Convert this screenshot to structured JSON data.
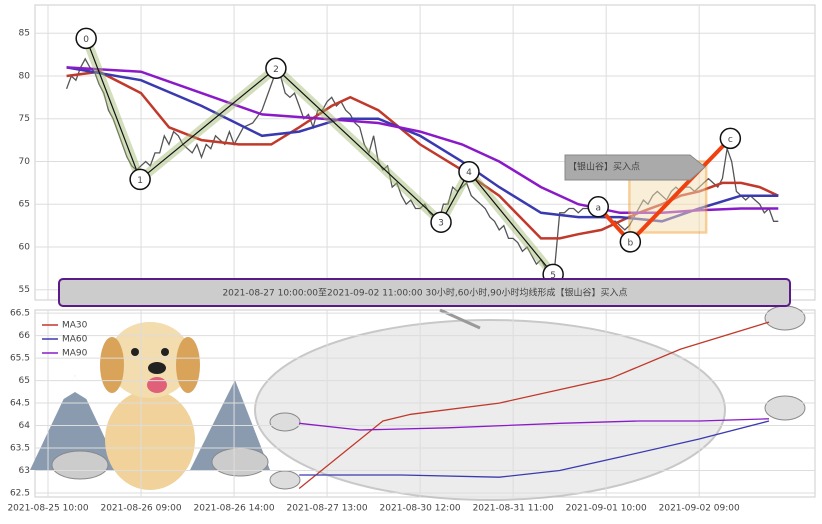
{
  "chart_data": [
    {
      "type": "line",
      "ylim": [
        53.8,
        88.3
      ],
      "xlim": [
        -2.8,
        164.9
      ],
      "yticks": [
        55,
        60,
        65,
        70,
        75,
        80,
        85
      ],
      "grid": true,
      "series": [
        {
          "color": "#555555",
          "x": [
            4,
            5,
            6,
            7,
            8,
            9,
            10,
            11,
            12,
            13,
            14,
            15,
            16,
            17,
            18,
            19,
            20,
            21,
            22,
            23,
            24,
            25,
            26,
            27,
            28,
            29,
            30,
            31,
            32,
            33,
            34,
            35,
            36,
            37,
            38,
            39,
            40,
            42,
            44,
            46,
            48,
            49,
            50,
            51,
            52,
            53,
            54,
            55,
            56,
            57,
            58,
            59,
            60,
            61,
            62,
            63,
            64,
            65,
            66,
            67,
            68,
            69,
            70,
            71,
            72,
            73,
            74,
            75,
            76,
            77,
            78,
            79,
            80,
            81,
            82,
            83,
            84,
            85,
            86,
            87,
            88,
            89,
            90,
            91,
            92,
            93,
            94,
            95,
            96,
            97,
            98,
            99,
            100,
            101,
            102,
            103,
            104,
            105,
            106,
            107,
            108,
            109,
            110,
            111,
            112,
            113,
            114,
            115,
            116,
            117,
            118,
            119,
            120,
            121,
            122,
            123,
            124,
            125,
            126,
            127,
            128,
            129,
            130,
            131,
            132,
            133,
            134,
            135,
            136,
            137,
            138,
            139,
            140,
            141,
            142,
            143,
            144,
            145,
            146,
            147,
            148,
            149,
            150,
            151,
            152,
            153,
            154,
            155,
            156,
            157
          ],
          "values": [
            78.5,
            80,
            79.5,
            81,
            82,
            81,
            80.5,
            79,
            78,
            76,
            75,
            73.5,
            72,
            70.5,
            69.5,
            69,
            69.5,
            70,
            69.5,
            71,
            71,
            73,
            72,
            73.5,
            73,
            72,
            71.5,
            71,
            72,
            70.5,
            72,
            71.5,
            73,
            72.5,
            72,
            73.5,
            72,
            74,
            74.5,
            76,
            79,
            80.5,
            80,
            78,
            77.5,
            78,
            76.5,
            75,
            75.5,
            74,
            76,
            76,
            77,
            77.5,
            76.5,
            77,
            76,
            75.5,
            74.5,
            74,
            72,
            71,
            73,
            70,
            69,
            69.5,
            67,
            67.5,
            66,
            65,
            65.5,
            64.5,
            64.5,
            65,
            64,
            63.5,
            63,
            65,
            65,
            67,
            66.5,
            67,
            67.5,
            66,
            65.5,
            65,
            64.5,
            63.5,
            63,
            62,
            62.5,
            61,
            61,
            60.5,
            59.5,
            60,
            59,
            58,
            58.5,
            57.5,
            57.5,
            58,
            64,
            64,
            64.5,
            64.5,
            64,
            64.5,
            64.5,
            64,
            64,
            64,
            63.5,
            63,
            63,
            62.5,
            62,
            62.5,
            63.5,
            64.5,
            65.5,
            65,
            66,
            66.5,
            66,
            65.5,
            66.5,
            67,
            66.5,
            67,
            67,
            66.5,
            67,
            67.5,
            68,
            67.5,
            67,
            68,
            71.5,
            70,
            66.5,
            66,
            65.5,
            66,
            65.5,
            65,
            64,
            64.5,
            63,
            63
          ]
        },
        {
          "color": "#c0392b",
          "x": [
            4,
            11,
            20,
            26,
            33,
            41,
            48,
            54,
            61,
            65,
            71,
            80,
            89,
            97,
            106,
            110,
            114,
            119,
            123,
            127,
            132,
            136,
            140,
            145,
            149,
            153,
            157
          ],
          "values": [
            80,
            80.5,
            78,
            74,
            72.5,
            72,
            72,
            74,
            76.5,
            77.5,
            76,
            72,
            69,
            66,
            61,
            61,
            61.5,
            62,
            63,
            64,
            65,
            66,
            66.5,
            67.5,
            67.5,
            67,
            66
          ]
        },
        {
          "color": "#3a3ab0",
          "x": [
            4,
            20,
            33,
            46,
            54,
            63,
            71,
            80,
            89,
            97,
            106,
            114,
            123,
            132,
            140,
            149,
            157
          ],
          "values": [
            81,
            79.5,
            76.5,
            73,
            73.5,
            75,
            75,
            73,
            70,
            67,
            64,
            63.5,
            63.5,
            63,
            64.5,
            66,
            66
          ]
        },
        {
          "color": "#8a1ac8",
          "x": [
            4,
            20,
            33,
            46,
            59,
            71,
            80,
            89,
            97,
            106,
            114,
            123,
            132,
            140,
            149,
            157
          ],
          "values": [
            81,
            80.5,
            78,
            75.5,
            75,
            74.5,
            73.5,
            72,
            70,
            67,
            65,
            64,
            64,
            64.3,
            64.5,
            64.5
          ]
        }
      ],
      "waves": [
        {
          "label": "0",
          "x": 8.2,
          "y": 84.4
        },
        {
          "label": "1",
          "x": 19.8,
          "y": 67.9
        },
        {
          "label": "2",
          "x": 49,
          "y": 80.9
        },
        {
          "label": "3",
          "x": 84.5,
          "y": 62.9
        },
        {
          "label": "4",
          "x": 90.5,
          "y": 68.8
        },
        {
          "label": "5",
          "x": 108.6,
          "y": 56.8
        }
      ],
      "abc": [
        {
          "label": "a",
          "x": 118.3,
          "y": 64.7
        },
        {
          "label": "b",
          "x": 125.2,
          "y": 60.6
        },
        {
          "label": "c",
          "x": 146.7,
          "y": 72.7
        }
      ],
      "buy_zone": {
        "x": [
          125,
          141.5
        ],
        "y": [
          61.7,
          70
        ]
      },
      "tag": "【银山谷】买入点",
      "banner": "2021-08-27 10:00:00至2021-09-02 11:00:00 30小时,60小时,90小时均线形成【银山谷】买入点"
    },
    {
      "type": "line",
      "ylim": [
        62.41,
        66.57
      ],
      "xlim": [
        -2.8,
        164.9
      ],
      "yticks": [
        62.5,
        63,
        63.5,
        64,
        64.5,
        65,
        65.5,
        66,
        66.5
      ],
      "xticks": [
        {
          "value": 0,
          "label": "2021-08-25 10:00"
        },
        {
          "value": 20,
          "label": "2021-08-26 09:00"
        },
        {
          "value": 40,
          "label": "2021-08-26 14:00"
        },
        {
          "value": 60,
          "label": "2021-08-27 13:00"
        },
        {
          "value": 80,
          "label": "2021-08-30 12:00"
        },
        {
          "value": 100,
          "label": "2021-08-31 11:00"
        },
        {
          "value": 120,
          "label": "2021-09-01 10:00"
        },
        {
          "value": 140,
          "label": "2021-09-02 09:00"
        }
      ],
      "grid": true,
      "legend": "upper left",
      "series": [
        {
          "name": "MA30",
          "color": "#c0392b",
          "x": [
            54,
            72,
            78,
            97,
            110,
            121,
            136,
            155
          ],
          "values": [
            62.6,
            64.1,
            64.25,
            64.5,
            64.8,
            65.05,
            65.7,
            66.3
          ]
        },
        {
          "name": "MA60",
          "color": "#3a3ab0",
          "x": [
            54,
            76,
            97,
            110,
            123,
            140,
            155
          ],
          "values": [
            62.9,
            62.9,
            62.85,
            63,
            63.3,
            63.7,
            64.1
          ]
        },
        {
          "name": "MA90",
          "color": "#8a1ac8",
          "x": [
            54,
            67,
            86,
            110,
            127,
            140,
            155
          ],
          "values": [
            64.05,
            63.9,
            63.95,
            64.05,
            64.1,
            64.1,
            64.15
          ]
        }
      ]
    }
  ]
}
